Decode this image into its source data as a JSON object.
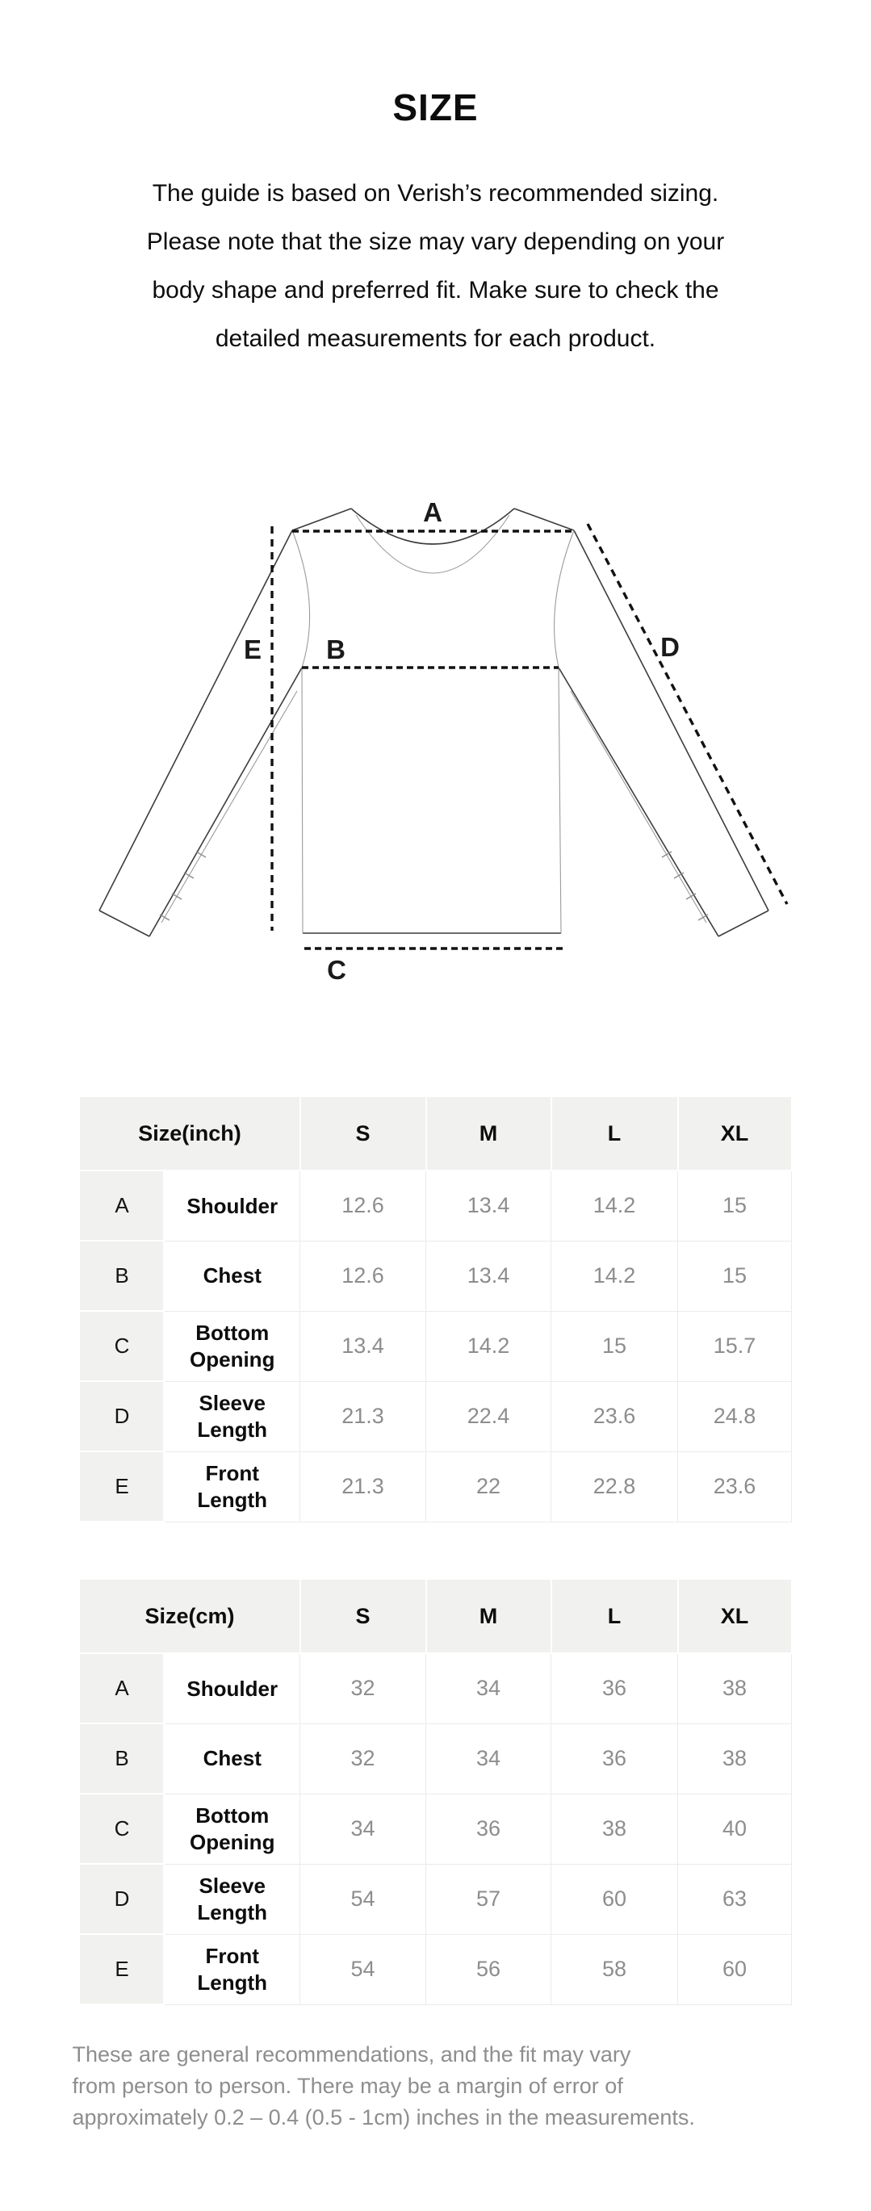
{
  "title": "SIZE",
  "intro": {
    "lines": [
      "The guide is based on Verish’s recommended sizing.",
      "Please note that the size may vary depending on your",
      "body shape and preferred fit. Make sure to check the",
      "detailed measurements for each product."
    ]
  },
  "diagram": {
    "labels": {
      "shoulder": "A",
      "chest": "B",
      "bottom_opening": "C",
      "sleeve_length": "D",
      "front_length": "E"
    }
  },
  "tables": [
    {
      "header": {
        "size_label": "Size(inch)",
        "columns": [
          "S",
          "M",
          "L",
          "XL"
        ]
      },
      "rows": [
        {
          "key": "A",
          "name": "Shoulder",
          "values": [
            "12.6",
            "13.4",
            "14.2",
            "15"
          ]
        },
        {
          "key": "B",
          "name": "Chest",
          "values": [
            "12.6",
            "13.4",
            "14.2",
            "15"
          ]
        },
        {
          "key": "C",
          "name": "Bottom Opening",
          "values": [
            "13.4",
            "14.2",
            "15",
            "15.7"
          ]
        },
        {
          "key": "D",
          "name": "Sleeve Length",
          "values": [
            "21.3",
            "22.4",
            "23.6",
            "24.8"
          ]
        },
        {
          "key": "E",
          "name": "Front Length",
          "values": [
            "21.3",
            "22",
            "22.8",
            "23.6"
          ]
        }
      ]
    },
    {
      "header": {
        "size_label": "Size(cm)",
        "columns": [
          "S",
          "M",
          "L",
          "XL"
        ]
      },
      "rows": [
        {
          "key": "A",
          "name": "Shoulder",
          "values": [
            "32",
            "34",
            "36",
            "38"
          ]
        },
        {
          "key": "B",
          "name": "Chest",
          "values": [
            "32",
            "34",
            "36",
            "38"
          ]
        },
        {
          "key": "C",
          "name": "Bottom Opening",
          "values": [
            "34",
            "36",
            "38",
            "40"
          ]
        },
        {
          "key": "D",
          "name": "Sleeve Length",
          "values": [
            "54",
            "57",
            "60",
            "63"
          ]
        },
        {
          "key": "E",
          "name": "Front Length",
          "values": [
            "54",
            "56",
            "58",
            "60"
          ]
        }
      ]
    }
  ],
  "footnote": {
    "lines": [
      "These are general recommendations, and the fit may vary",
      "from person to person. There may be a margin of error of",
      "approximately 0.2 – 0.4 (0.5 - 1cm) inches in the measurements."
    ]
  },
  "colors": {
    "table_header_bg": "#f1f1ef",
    "muted_text": "#8e8e8e",
    "body_text": "#0d0d0d"
  }
}
